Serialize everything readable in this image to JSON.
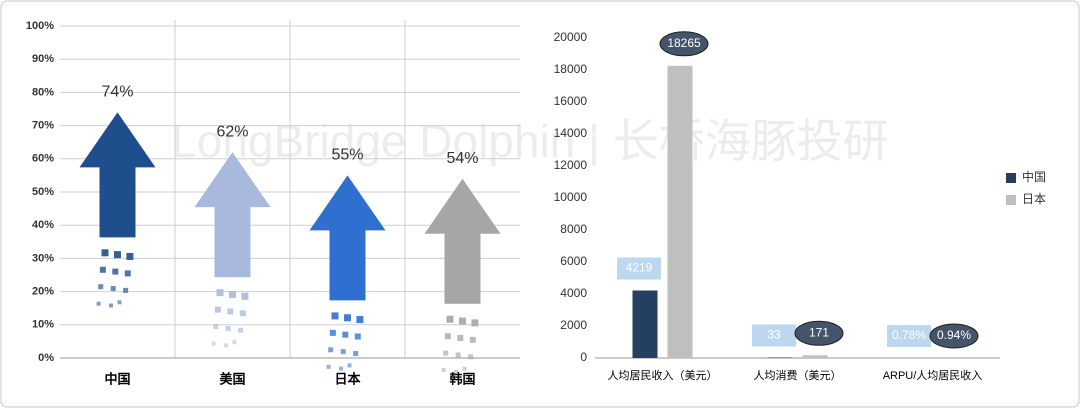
{
  "watermark": "LongBridge Dolphin | 长桥海豚投研",
  "chart_data": [
    {
      "type": "arrow",
      "categories": [
        "中国",
        "美国",
        "日本",
        "韩国"
      ],
      "values": [
        74,
        62,
        55,
        54
      ],
      "value_labels": [
        "74%",
        "62%",
        "55%",
        "54%"
      ],
      "colors": [
        "#1f4e8c",
        "#a9b9dd",
        "#2e6fd0",
        "#a6a6a6"
      ],
      "ylim": [
        0,
        100
      ],
      "yticks": [
        {
          "value": 0,
          "label": "0%"
        },
        {
          "value": 10,
          "label": "10%"
        },
        {
          "value": 20,
          "label": "20%"
        },
        {
          "value": 30,
          "label": "30%"
        },
        {
          "value": 40,
          "label": "40%"
        },
        {
          "value": 50,
          "label": "50%"
        },
        {
          "value": 60,
          "label": "60%"
        },
        {
          "value": 70,
          "label": "70%"
        },
        {
          "value": 80,
          "label": "80%"
        },
        {
          "value": 90,
          "label": "90%"
        },
        {
          "value": 100,
          "label": "100%"
        }
      ],
      "grid": true
    },
    {
      "type": "bar",
      "categories": [
        "人均居民收入（美元）",
        "人均消费（美元）",
        "ARPU/人均居民收入"
      ],
      "series": [
        {
          "name": "中国",
          "color": "#243f60",
          "values": [
            4219,
            33,
            0.78
          ],
          "value_labels": [
            "4219",
            "33",
            "0.78%"
          ]
        },
        {
          "name": "日本",
          "color": "#bfbfbf",
          "values": [
            18265,
            171,
            0.94
          ],
          "value_labels": [
            "18265",
            "171",
            "0.94%"
          ]
        }
      ],
      "ylim": [
        0,
        20000
      ],
      "yticks": [
        0,
        2000,
        4000,
        6000,
        8000,
        10000,
        12000,
        14000,
        16000,
        18000,
        20000
      ],
      "grid": false,
      "legend": "right"
    }
  ]
}
